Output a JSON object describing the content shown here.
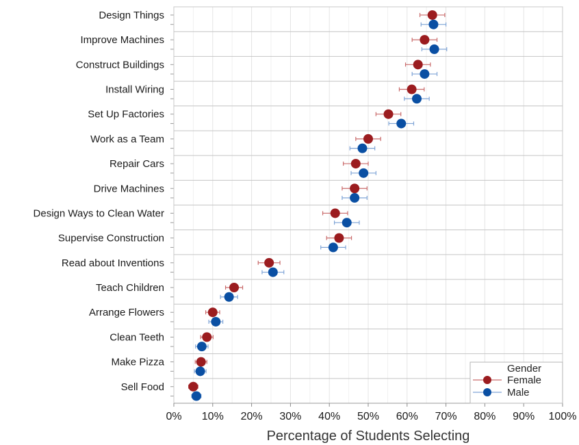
{
  "chart_data": {
    "type": "scatter",
    "title": "",
    "xlabel": "Percentage of Students Selecting",
    "ylabel": "",
    "xlim": [
      0,
      100
    ],
    "xticks": [
      0,
      10,
      20,
      30,
      40,
      50,
      60,
      70,
      80,
      90,
      100
    ],
    "xtick_labels": [
      "0%",
      "10%",
      "20%",
      "30%",
      "40%",
      "50%",
      "60%",
      "70%",
      "80%",
      "90%",
      "100%"
    ],
    "categories": [
      "Design Things",
      "Improve Machines",
      "Construct Buildings",
      "Install Wiring",
      "Set Up Factories",
      "Work as a Team",
      "Repair Cars",
      "Drive Machines",
      "Design Ways to Clean Water",
      "Supervise Construction",
      "Read about Inventions",
      "Teach Children",
      "Arrange Flowers",
      "Clean Teeth",
      "Make Pizza",
      "Sell Food"
    ],
    "series": [
      {
        "name": "Female",
        "color": "#9b1c1f",
        "errcolor": "#c96a6a",
        "values": [
          66.5,
          64.5,
          62.8,
          61.2,
          55.2,
          50.0,
          46.8,
          46.5,
          41.5,
          42.5,
          24.5,
          15.5,
          10.0,
          8.5,
          7.0,
          5.0
        ],
        "err": [
          3.2,
          3.2,
          3.2,
          3.2,
          3.2,
          3.2,
          3.2,
          3.2,
          3.2,
          3.2,
          2.8,
          2.2,
          1.8,
          1.6,
          1.5,
          1.2
        ]
      },
      {
        "name": "Male",
        "color": "#0a4fa3",
        "errcolor": "#7fa4d6",
        "values": [
          66.8,
          67.0,
          64.5,
          62.5,
          58.5,
          48.5,
          48.8,
          46.5,
          44.5,
          41.0,
          25.5,
          14.2,
          10.8,
          7.2,
          6.8,
          5.8
        ],
        "err": [
          3.2,
          3.2,
          3.2,
          3.2,
          3.2,
          3.2,
          3.2,
          3.2,
          3.2,
          3.2,
          2.8,
          2.2,
          1.8,
          1.6,
          1.5,
          1.2
        ]
      }
    ],
    "legend": {
      "title": "Gender",
      "placement": "bottom-right"
    },
    "grid": true
  }
}
